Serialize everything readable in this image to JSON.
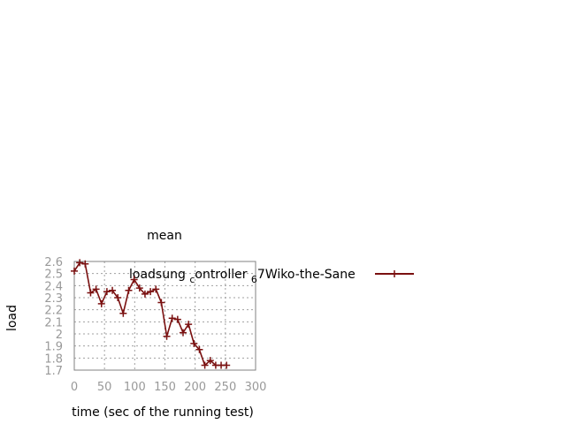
{
  "chart_data": {
    "type": "line",
    "title": "mean",
    "xlabel": "time (sec of the running test)",
    "ylabel": "load",
    "xlim": [
      0,
      300
    ],
    "ylim": [
      1.7,
      2.6
    ],
    "xticks": [
      0,
      50,
      100,
      150,
      200,
      250,
      300
    ],
    "yticks": [
      1.7,
      1.8,
      1.9,
      2.0,
      2.1,
      2.2,
      2.3,
      2.4,
      2.5,
      2.6
    ],
    "xtick_labels": [
      "0",
      "50",
      "100",
      "150",
      "200",
      "250",
      "300"
    ],
    "ytick_labels": [
      "1.7",
      "1.8",
      "1.9",
      "2",
      "2.1",
      "2.2",
      "2.3",
      "2.4",
      "2.5",
      "2.6"
    ],
    "grid": true,
    "legend_position": "top-right",
    "legend": {
      "part1": "load",
      "part2": "sung",
      "subscript": "c",
      "part3": "ontroller",
      "part4": "6",
      "part5": "7Wiko-the-Sane"
    },
    "series": [
      {
        "color": "#7a1010",
        "marker": "plus",
        "x": [
          0,
          9,
          18,
          27,
          36,
          45,
          54,
          63,
          72,
          81,
          90,
          99,
          108,
          117,
          126,
          135,
          144,
          153,
          162,
          171,
          180,
          189,
          198,
          207,
          216,
          225,
          234,
          243,
          252
        ],
        "y": [
          2.52,
          2.59,
          2.58,
          2.34,
          2.37,
          2.25,
          2.35,
          2.36,
          2.3,
          2.17,
          2.36,
          2.45,
          2.38,
          2.33,
          2.35,
          2.37,
          2.26,
          1.98,
          2.13,
          2.12,
          2.01,
          2.08,
          1.92,
          1.87,
          1.74,
          1.78,
          1.74,
          1.74,
          1.74
        ]
      }
    ]
  }
}
